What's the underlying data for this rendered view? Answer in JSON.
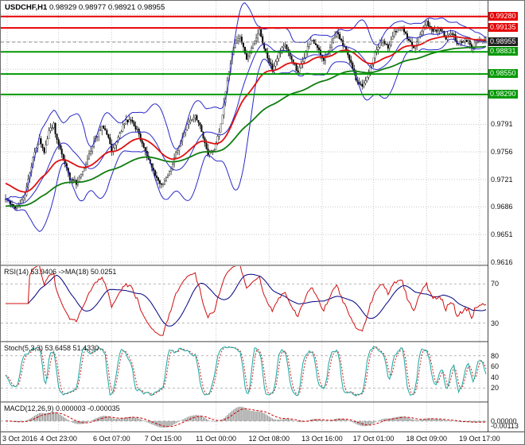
{
  "window": {
    "title_symbol": "USDCHF,H1",
    "title_ohlc": "0.98929 0.98977 0.98921 0.98955"
  },
  "panels": {
    "rsi_label": "RSI(14) 53.9406",
    "rsi_ma_label": "->MA(18) 50.0251",
    "stoch_label": "Stoch(5,3,3) 53.6458 51.4330",
    "macd_label": "MACD(12,26,9) 0.000003 -0.000035"
  },
  "colors": {
    "background": "#ffffff",
    "grid": "#c9c9c9",
    "bull_candle": "#ffffff",
    "bear_candle": "#000000",
    "candle_outline": "#000000",
    "bollinger": "#2a2ac8",
    "ma_fast": "#e01010",
    "ma_slow": "#0f7d0f",
    "resistance": "#e60000",
    "support": "#009900",
    "current_price_box": "#202020",
    "rsi_line": "#d01010",
    "rsi_ma": "#000080",
    "stoch_main": "#18a8a0",
    "stoch_signal": "#cc2020",
    "macd_hist": "#8a8a8a",
    "macd_signal": "#cc0000",
    "level_dash": "#b8b8b8",
    "axis_text": "#111111"
  },
  "chart_data": {
    "type": "candlestick",
    "symbol": "USDCHF",
    "timeframe": "H1",
    "title": "USDCHF,H1 0.98929 0.98977 0.98921 0.98955",
    "last_bar": {
      "open": 0.98929,
      "high": 0.98977,
      "low": 0.98921,
      "close": 0.98955
    },
    "price_axis": {
      "range": [
        0.96137,
        0.9947
      ],
      "grid_ticks": [
        0.9931,
        0.9896,
        0.9861,
        0.9826,
        0.9791,
        0.9756,
        0.9721,
        0.9686,
        0.9651,
        0.9616
      ],
      "labeled_ticks": [
        "0.9791",
        "0.9756",
        "0.9721",
        "0.9686",
        "0.9651",
        "0.9616"
      ]
    },
    "time_axis": {
      "labels": [
        "3 Oct 2016",
        "4 Oct 23:00",
        "6 Oct 07:00",
        "7 Oct 15:00",
        "11 Oct 00:00",
        "12 Oct 08:00",
        "13 Oct 16:00",
        "17 Oct 01:00",
        "18 Oct 09:00",
        "19 Oct 17:00"
      ],
      "tick_bars": [
        1,
        33,
        66,
        98,
        131,
        164,
        197,
        229,
        262,
        295
      ]
    },
    "current_price": {
      "label": "0.98955",
      "value": 0.98955
    },
    "levels": [
      {
        "label": "0.99280",
        "value": 0.9928,
        "kind": "resistance"
      },
      {
        "label": "0.99135",
        "value": 0.99135,
        "kind": "resistance"
      },
      {
        "label": "0.98831",
        "value": 0.98831,
        "kind": "support"
      },
      {
        "label": "0.98550",
        "value": 0.9855,
        "kind": "support"
      },
      {
        "label": "0.98290",
        "value": 0.9829,
        "kind": "support"
      }
    ],
    "series": {
      "bar_count": 300,
      "noise_seed": 20161019,
      "noise_amp": 0.00026,
      "wick_amp": 0.00062,
      "close_keypoints": [
        [
          0,
          0.9697
        ],
        [
          3,
          0.969
        ],
        [
          6,
          0.9684
        ],
        [
          9,
          0.9689
        ],
        [
          12,
          0.9703
        ],
        [
          15,
          0.9728
        ],
        [
          18,
          0.9758
        ],
        [
          21,
          0.9772
        ],
        [
          24,
          0.9754
        ],
        [
          27,
          0.9782
        ],
        [
          30,
          0.979
        ],
        [
          33,
          0.9763
        ],
        [
          36,
          0.9746
        ],
        [
          40,
          0.9722
        ],
        [
          44,
          0.9716
        ],
        [
          48,
          0.9731
        ],
        [
          52,
          0.9753
        ],
        [
          56,
          0.9773
        ],
        [
          60,
          0.979
        ],
        [
          63,
          0.9779
        ],
        [
          66,
          0.9758
        ],
        [
          70,
          0.9775
        ],
        [
          74,
          0.9793
        ],
        [
          78,
          0.9798
        ],
        [
          82,
          0.9783
        ],
        [
          86,
          0.9761
        ],
        [
          90,
          0.9741
        ],
        [
          94,
          0.9723
        ],
        [
          98,
          0.9713
        ],
        [
          102,
          0.9731
        ],
        [
          106,
          0.9753
        ],
        [
          110,
          0.9776
        ],
        [
          114,
          0.9793
        ],
        [
          118,
          0.9801
        ],
        [
          122,
          0.9783
        ],
        [
          126,
          0.9753
        ],
        [
          130,
          0.9761
        ],
        [
          134,
          0.9789
        ],
        [
          138,
          0.9846
        ],
        [
          142,
          0.9891
        ],
        [
          146,
          0.9904
        ],
        [
          150,
          0.9873
        ],
        [
          154,
          0.9891
        ],
        [
          158,
          0.991
        ],
        [
          162,
          0.9883
        ],
        [
          166,
          0.9861
        ],
        [
          170,
          0.9881
        ],
        [
          174,
          0.9894
        ],
        [
          178,
          0.9873
        ],
        [
          182,
          0.9858
        ],
        [
          186,
          0.9877
        ],
        [
          190,
          0.9899
        ],
        [
          194,
          0.9887
        ],
        [
          198,
          0.9873
        ],
        [
          202,
          0.989
        ],
        [
          206,
          0.9907
        ],
        [
          210,
          0.9893
        ],
        [
          214,
          0.9873
        ],
        [
          218,
          0.9849
        ],
        [
          222,
          0.9837
        ],
        [
          226,
          0.9857
        ],
        [
          230,
          0.9882
        ],
        [
          234,
          0.9897
        ],
        [
          238,
          0.9888
        ],
        [
          242,
          0.9907
        ],
        [
          246,
          0.9917
        ],
        [
          250,
          0.9902
        ],
        [
          254,
          0.9888
        ],
        [
          258,
          0.9904
        ],
        [
          262,
          0.9922
        ],
        [
          266,
          0.9907
        ],
        [
          270,
          0.9914
        ],
        [
          274,
          0.99
        ],
        [
          278,
          0.9907
        ],
        [
          282,
          0.9892
        ],
        [
          286,
          0.99
        ],
        [
          290,
          0.989
        ],
        [
          294,
          0.9895
        ],
        [
          299,
          0.9896
        ]
      ]
    },
    "overlays": {
      "bollinger": {
        "period": 20,
        "deviation": 2
      },
      "ma_fast": {
        "type": "ema",
        "period": 40,
        "start": 0.9716
      },
      "ma_slow": {
        "type": "ema",
        "period": 100,
        "start": 0.9687
      }
    },
    "rsi": {
      "period": 14,
      "ma_period": 18,
      "last": 53.9406,
      "ma_last": 50.0251,
      "scale": [
        15,
        85
      ],
      "levels": [
        70,
        30
      ],
      "tick_labels": [
        "70",
        "30"
      ]
    },
    "stoch": {
      "k_period": 5,
      "d_period": 3,
      "slowing": 3,
      "last_main": 53.6458,
      "last_signal": 51.433,
      "scale": [
        0,
        100
      ],
      "levels": [
        80,
        20
      ],
      "tick_values": [
        80,
        60,
        40,
        20
      ],
      "tick_labels": [
        "80",
        "60",
        "40",
        "20"
      ]
    },
    "macd": {
      "fast": 12,
      "slow": 26,
      "signal": 9,
      "last_main": 3e-06,
      "last_signal": -3.5e-05,
      "tick_values": [
        0,
        -0.00113
      ],
      "tick_labels": [
        "0.00000",
        "-0.00113"
      ]
    }
  }
}
